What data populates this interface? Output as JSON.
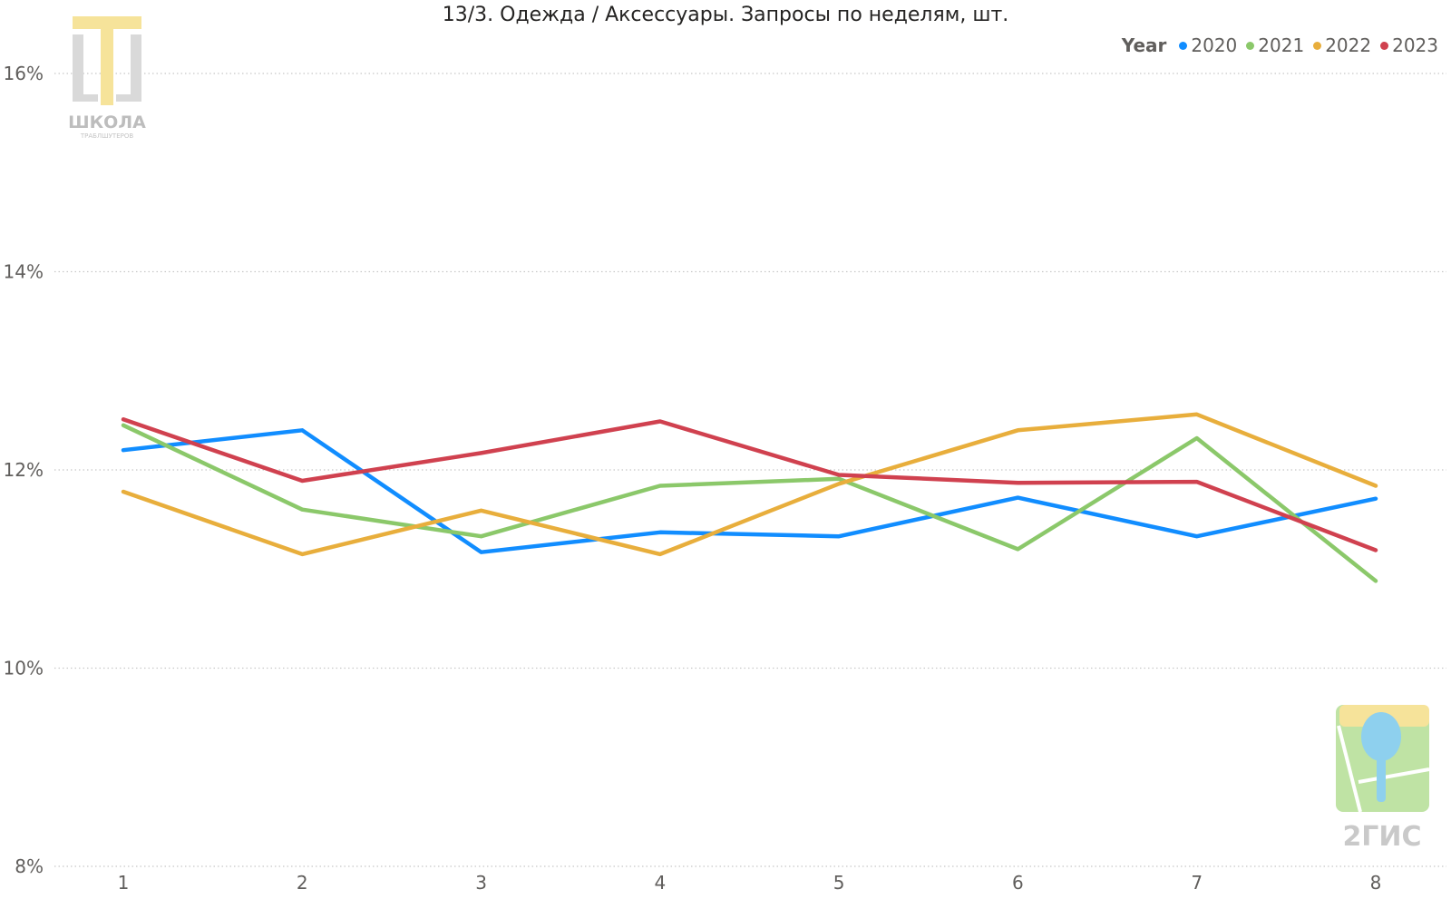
{
  "chart_data": {
    "type": "line",
    "title": "13/3. Одежда / Аксессуары. Запросы по неделям, шт.",
    "xlabel": "",
    "ylabel": "",
    "categories": [
      "1",
      "2",
      "3",
      "4",
      "5",
      "6",
      "7",
      "8"
    ],
    "ylim": [
      8,
      16
    ],
    "yticks": [
      8,
      10,
      12,
      14,
      16
    ],
    "ytick_labels": [
      "8%",
      "10%",
      "12%",
      "14%",
      "16%"
    ],
    "y_unit": "%",
    "grid": "horizontal dotted",
    "legend": {
      "title": "Year",
      "placement": "top-right"
    },
    "series": [
      {
        "name": "2020",
        "color": "#118DFF",
        "values": [
          12.2,
          12.4,
          11.17,
          11.37,
          11.33,
          11.72,
          11.33,
          11.71
        ]
      },
      {
        "name": "2021",
        "color": "#8BC86A",
        "values": [
          12.45,
          11.6,
          11.33,
          11.84,
          11.91,
          11.2,
          12.32,
          10.88
        ]
      },
      {
        "name": "2022",
        "color": "#E8AE3C",
        "values": [
          11.78,
          11.15,
          11.59,
          11.15,
          11.86,
          12.4,
          12.56,
          11.84
        ]
      },
      {
        "name": "2023",
        "color": "#D0414F",
        "values": [
          12.51,
          11.89,
          12.17,
          12.49,
          11.95,
          11.87,
          11.88,
          11.19
        ]
      }
    ]
  },
  "logos": {
    "school_caption": "ШКОЛА",
    "school_subcaption": "ТРАБЛШУТЕРОВ",
    "gis_caption": "2ГИС"
  }
}
